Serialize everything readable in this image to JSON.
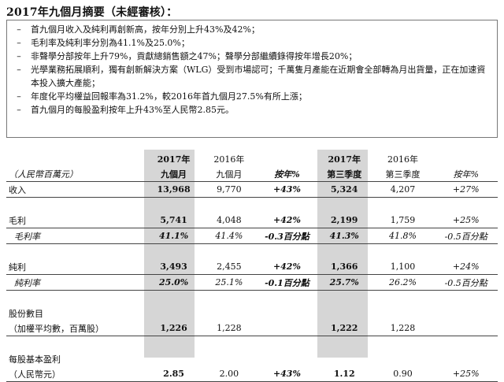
{
  "title": "2017年九個月摘要（未經審核）：",
  "bullets": [
    "首九個月收入及純利再創新高，按年分別上升43%及42%；",
    "毛利率及純利率分別為41.1%及25.0%；",
    "非聲學分部按年上升79%，貢獻總銷售額之47%；聲學分部繼續錄得按年增長20%；",
    "光學業務拓展順利，獨有創新解決方案（WLG）受到市場認可；千萬隻月產能在近期會全部轉為月出貨量，正在加速資本投入擴大產能；",
    "年度化平均權益回報率為31.2%，較2016年首九個月27.5%有所上漲；",
    "首九個月的每股盈利按年上升43%至人民幣2.85元。"
  ],
  "table": {
    "unit_label": "（人民幣百萬元）",
    "columns": [
      {
        "year": "2017年",
        "period": "九個月"
      },
      {
        "year": "2016年",
        "period": "九個月"
      },
      {
        "year": "",
        "period": "按年%"
      },
      {
        "year": "2017年",
        "period": "第三季度"
      },
      {
        "year": "2016年",
        "period": "第三季度"
      },
      {
        "year": "",
        "period": "按年%"
      }
    ],
    "rows": [
      {
        "label": "收入",
        "label2": "",
        "values": [
          "13,968",
          "9,770",
          "+43%",
          "5,324",
          "4,207",
          "+27%"
        ]
      },
      {
        "label": "毛利",
        "label2": "",
        "values": [
          "5,741",
          "4,048",
          "+42%",
          "2,199",
          "1,759",
          "+25%"
        ]
      },
      {
        "label": "毛利率",
        "label2": "",
        "values": [
          "41.1%",
          "41.4%",
          "-0.3百分點",
          "41.3%",
          "41.8%",
          "-0.5百分點"
        ]
      },
      {
        "label": "純利",
        "label2": "",
        "values": [
          "3,493",
          "2,455",
          "+42%",
          "1,366",
          "1,100",
          "+24%"
        ]
      },
      {
        "label": "純利率",
        "label2": "",
        "values": [
          "25.0%",
          "25.1%",
          "-0.1百分點",
          "25.7%",
          "26.2%",
          "-0.5百分點"
        ]
      },
      {
        "label": "股份數目",
        "label2": "（加權平均數，百萬股）",
        "values": [
          "1,226",
          "1,228",
          "",
          "1,222",
          "1,228",
          ""
        ]
      },
      {
        "label": "每股基本盈利",
        "label2": "（人民幣元）",
        "values": [
          "2.85",
          "2.00",
          "+43%",
          "1.12",
          "0.90",
          "+25%"
        ]
      }
    ]
  }
}
